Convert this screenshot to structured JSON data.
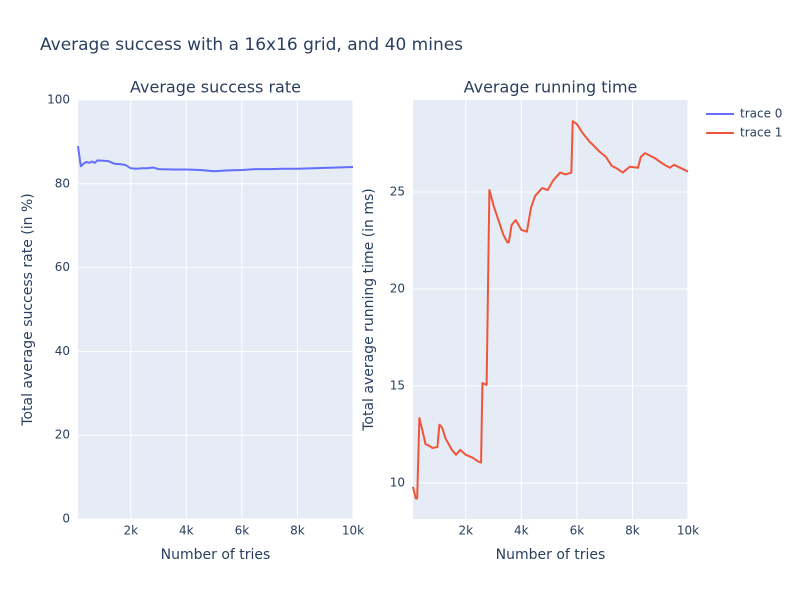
{
  "title": "Average success with a 16x16 grid, and 40 mines",
  "legend": "top-right",
  "chart_data": [
    {
      "type": "line",
      "title": "Average success rate",
      "xlabel": "Number of tries",
      "ylabel": "Total average success rate (in %)",
      "x": [
        100,
        200,
        300,
        400,
        500,
        600,
        700,
        800,
        1000,
        1200,
        1400,
        1600,
        1800,
        2000,
        2200,
        2400,
        2600,
        2800,
        3000,
        3500,
        4000,
        4500,
        5000,
        5500,
        6000,
        6500,
        7000,
        7500,
        8000,
        9000,
        10000
      ],
      "series": [
        {
          "name": "trace 0",
          "color": "#636efa",
          "values": [
            89,
            84.2,
            84.8,
            85.2,
            85.0,
            85.3,
            85.0,
            85.6,
            85.5,
            85.4,
            84.8,
            84.7,
            84.5,
            83.7,
            83.6,
            83.7,
            83.7,
            83.9,
            83.5,
            83.4,
            83.4,
            83.3,
            83.0,
            83.2,
            83.3,
            83.5,
            83.5,
            83.6,
            83.6,
            83.8,
            84.0
          ]
        }
      ],
      "xlim": [
        100,
        10000
      ],
      "xticks": [
        {
          "value": 2000,
          "label": "2k"
        },
        {
          "value": 4000,
          "label": "4k"
        },
        {
          "value": 6000,
          "label": "6k"
        },
        {
          "value": 8000,
          "label": "8k"
        },
        {
          "value": 10000,
          "label": "10k"
        }
      ],
      "ylim": [
        0,
        100
      ],
      "yticks": [
        0,
        20,
        40,
        60,
        80,
        100
      ],
      "grid": true
    },
    {
      "type": "line",
      "title": "Average running time",
      "xlabel": "Number of tries",
      "ylabel": "Total average running time (in ms)",
      "x": [
        100,
        200,
        250,
        330,
        440,
        550,
        700,
        800,
        980,
        1050,
        1150,
        1270,
        1500,
        1650,
        1800,
        2000,
        2250,
        2450,
        2550,
        2600,
        2750,
        2850,
        3000,
        3350,
        3500,
        3550,
        3650,
        3800,
        4000,
        4200,
        4350,
        4500,
        4750,
        4950,
        5150,
        5400,
        5600,
        5800,
        5850,
        6000,
        6200,
        6450,
        6600,
        6800,
        7050,
        7250,
        7450,
        7650,
        7900,
        8200,
        8300,
        8450,
        8800,
        9150,
        9350,
        9500,
        10000
      ],
      "series": [
        {
          "name": "trace 1",
          "color": "#EF553B",
          "values": [
            9.8,
            9.2,
            9.2,
            13.35,
            12.7,
            12.0,
            11.9,
            11.8,
            11.85,
            13.0,
            12.85,
            12.3,
            11.7,
            11.45,
            11.7,
            11.45,
            11.3,
            11.1,
            11.05,
            15.15,
            15.05,
            25.1,
            24.3,
            22.8,
            22.4,
            22.4,
            23.3,
            23.55,
            23.05,
            22.95,
            24.2,
            24.8,
            25.2,
            25.1,
            25.6,
            26.0,
            25.9,
            26.0,
            28.65,
            28.5,
            28.05,
            27.6,
            27.4,
            27.1,
            26.8,
            26.35,
            26.2,
            26.0,
            26.3,
            26.25,
            26.8,
            27.0,
            26.75,
            26.4,
            26.25,
            26.4,
            26.05
          ]
        }
      ],
      "xlim": [
        100,
        10000
      ],
      "xticks": [
        {
          "value": 2000,
          "label": "2k"
        },
        {
          "value": 4000,
          "label": "4k"
        },
        {
          "value": 6000,
          "label": "6k"
        },
        {
          "value": 8000,
          "label": "8k"
        },
        {
          "value": 10000,
          "label": "10k"
        }
      ],
      "ylim": [
        8.14,
        29.74
      ],
      "yticks": [
        10,
        15,
        20,
        25
      ],
      "grid": true
    }
  ]
}
